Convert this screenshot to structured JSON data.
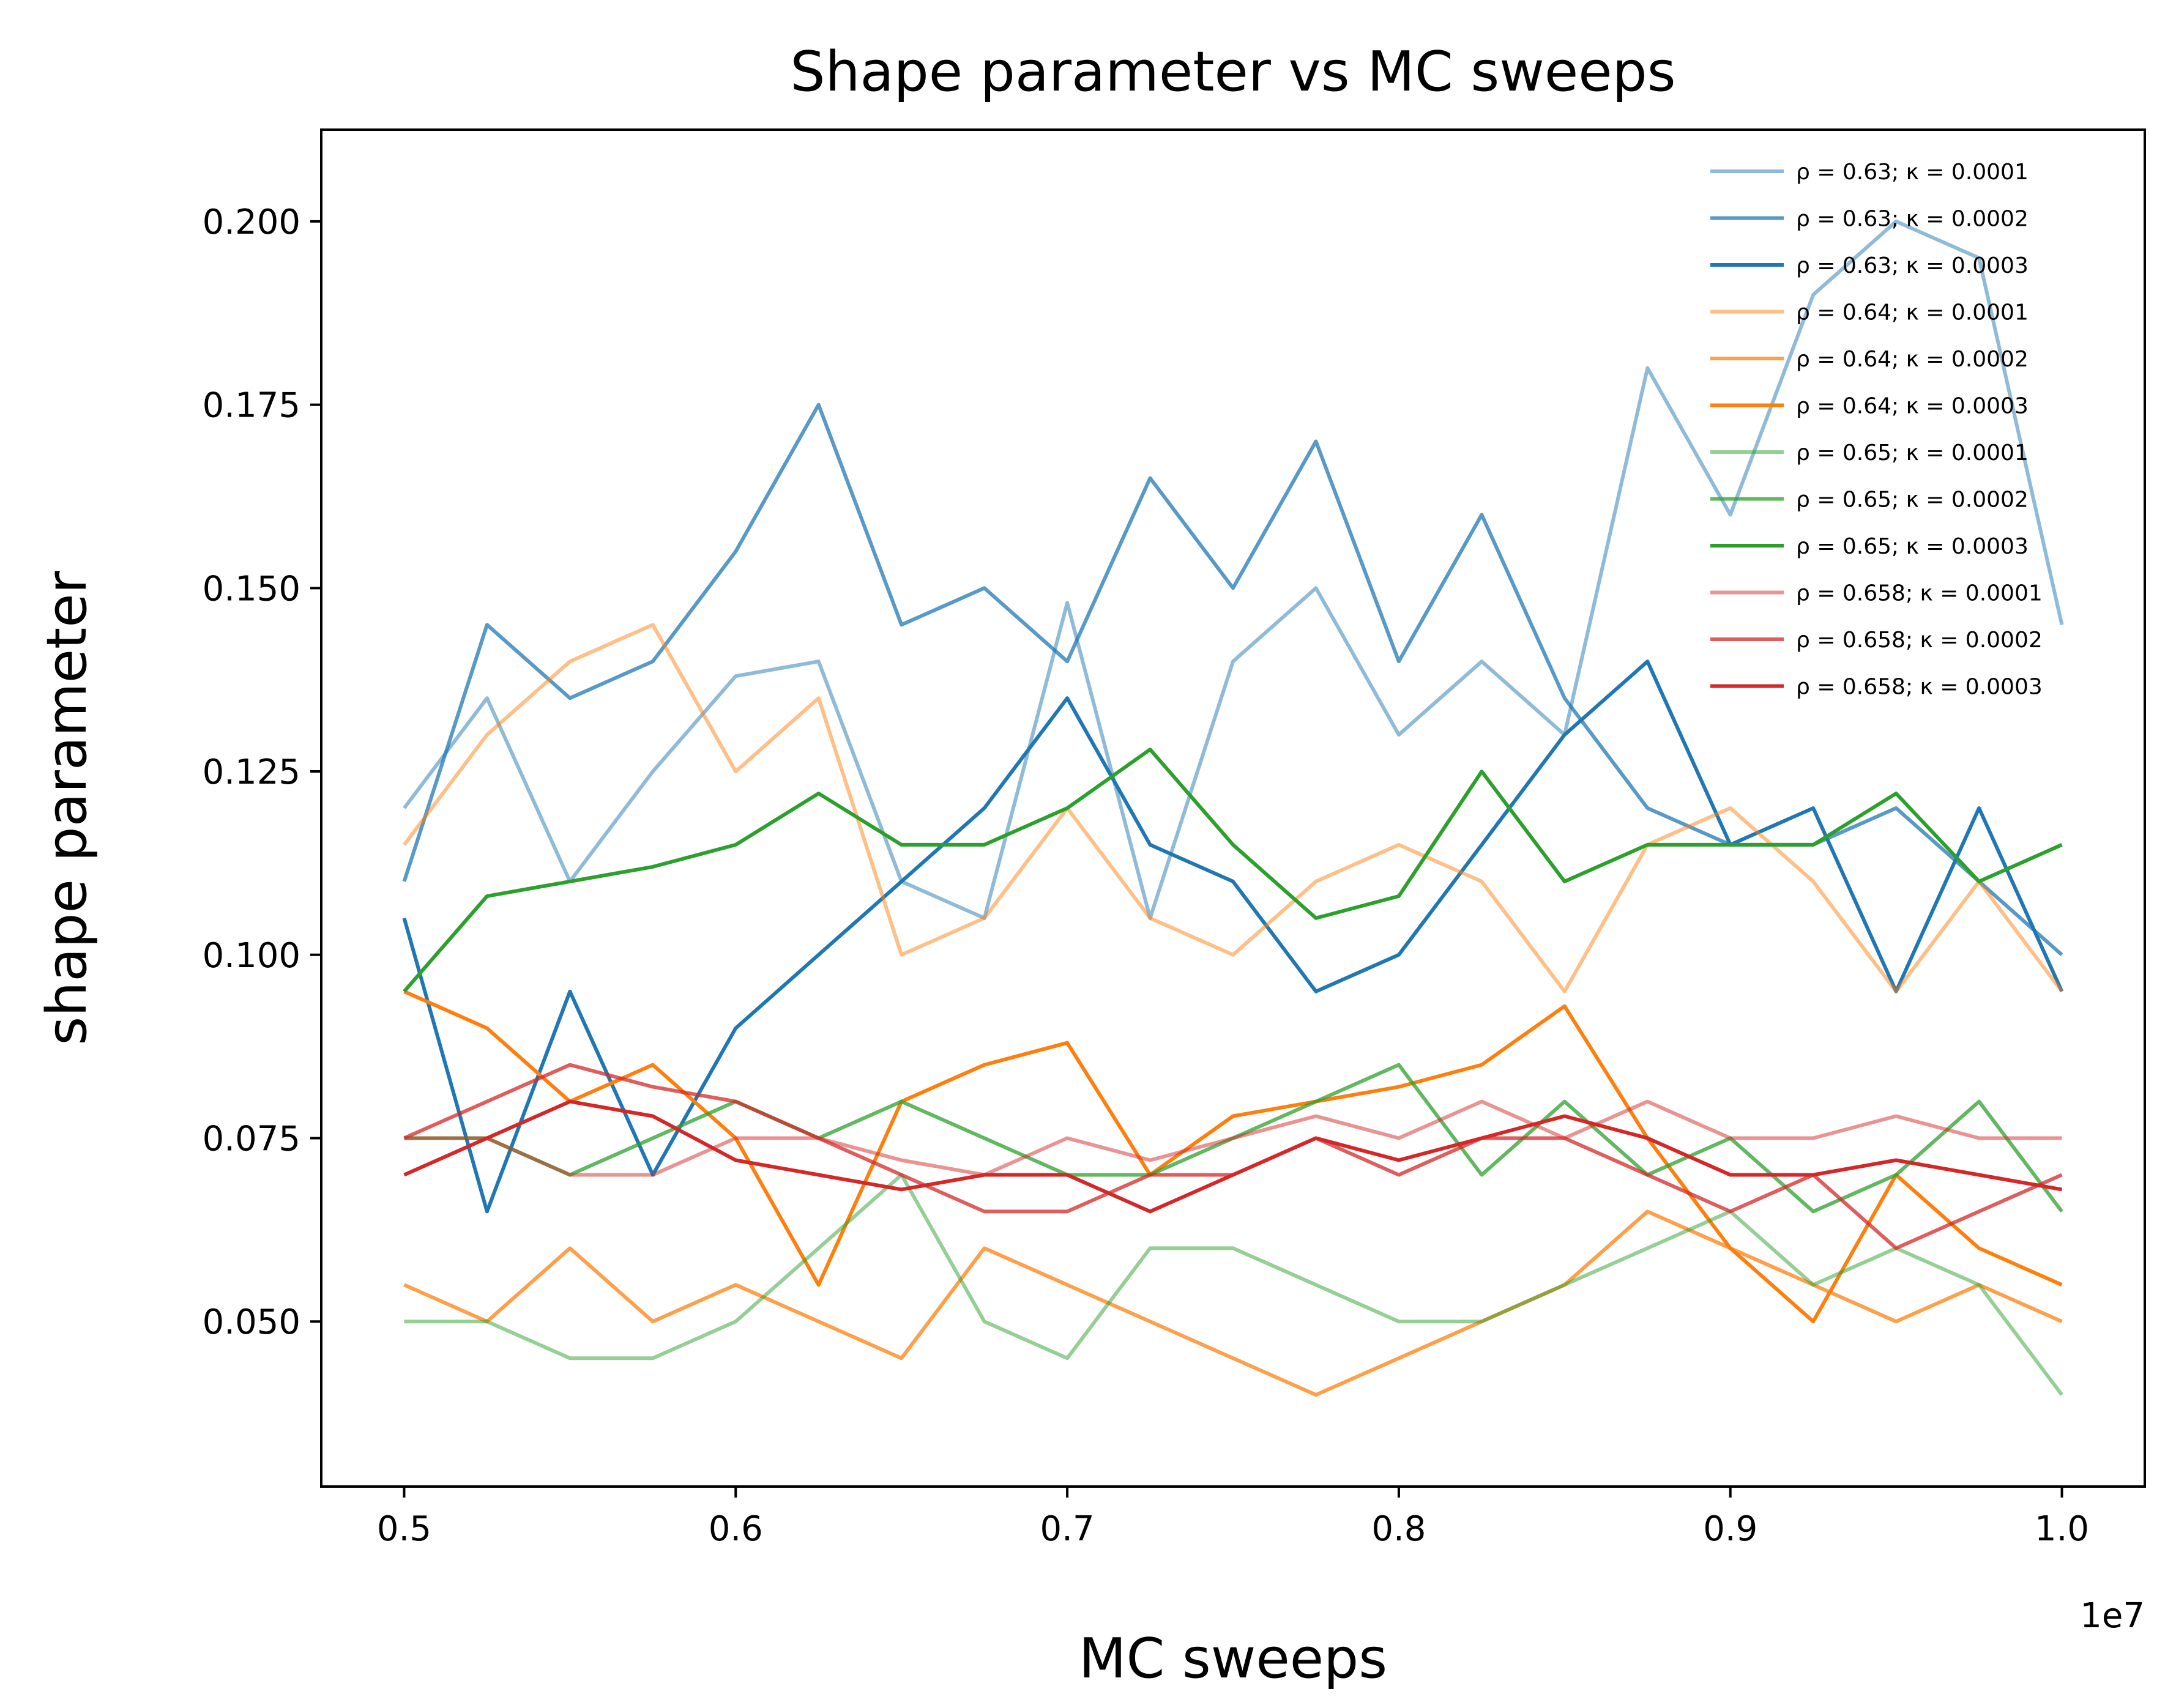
{
  "chart_data": {
    "type": "line",
    "title": "Shape parameter vs MC sweeps",
    "xlabel": "MC sweeps",
    "ylabel": "shape parameter",
    "x_offset_label": "1e7",
    "xlim": [
      0.475,
      1.025
    ],
    "ylim": [
      0.0275,
      0.2125
    ],
    "x_ticks": [
      0.5,
      0.6,
      0.7,
      0.8,
      0.9,
      1.0
    ],
    "x_tick_labels": [
      "0.5",
      "0.6",
      "0.7",
      "0.8",
      "0.9",
      "1.0"
    ],
    "y_ticks": [
      0.05,
      0.075,
      0.1,
      0.125,
      0.15,
      0.175,
      0.2
    ],
    "y_tick_labels": [
      "0.050",
      "0.075",
      "0.100",
      "0.125",
      "0.150",
      "0.175",
      "0.200"
    ],
    "grid": false,
    "legend_position": "top-right",
    "x": [
      0.5,
      0.525,
      0.55,
      0.575,
      0.6,
      0.625,
      0.65,
      0.675,
      0.7,
      0.725,
      0.75,
      0.775,
      0.8,
      0.825,
      0.85,
      0.875,
      0.9,
      0.925,
      0.95,
      0.975,
      1.0
    ],
    "series": [
      {
        "name": "ρ = 0.63; κ = 0.0001",
        "color": "#1f77b4",
        "opacity": 0.5,
        "values": [
          0.12,
          0.135,
          0.11,
          0.125,
          0.138,
          0.14,
          0.11,
          0.105,
          0.148,
          0.105,
          0.14,
          0.15,
          0.13,
          0.14,
          0.13,
          0.18,
          0.16,
          0.19,
          0.2,
          0.195,
          0.145
        ]
      },
      {
        "name": "ρ = 0.63; κ = 0.0002",
        "color": "#1f77b4",
        "opacity": 0.75,
        "values": [
          0.11,
          0.145,
          0.135,
          0.14,
          0.155,
          0.175,
          0.145,
          0.15,
          0.14,
          0.165,
          0.15,
          0.17,
          0.14,
          0.16,
          0.135,
          0.12,
          0.115,
          0.115,
          0.12,
          0.11,
          0.1
        ]
      },
      {
        "name": "ρ = 0.63; κ = 0.0003",
        "color": "#1f77b4",
        "opacity": 1.0,
        "values": [
          0.105,
          0.065,
          0.095,
          0.07,
          0.09,
          0.1,
          0.11,
          0.12,
          0.135,
          0.115,
          0.11,
          0.095,
          0.1,
          0.115,
          0.13,
          0.14,
          0.115,
          0.12,
          0.095,
          0.12,
          0.095
        ]
      },
      {
        "name": "ρ = 0.64; κ = 0.0001",
        "color": "#ff7f0e",
        "opacity": 0.5,
        "values": [
          0.115,
          0.13,
          0.14,
          0.145,
          0.125,
          0.135,
          0.1,
          0.105,
          0.12,
          0.105,
          0.1,
          0.11,
          0.115,
          0.11,
          0.095,
          0.115,
          0.12,
          0.11,
          0.095,
          0.11,
          0.095
        ]
      },
      {
        "name": "ρ = 0.64; κ = 0.0002",
        "color": "#ff7f0e",
        "opacity": 0.75,
        "values": [
          0.055,
          0.05,
          0.06,
          0.05,
          0.055,
          0.05,
          0.045,
          0.06,
          0.055,
          0.05,
          0.045,
          0.04,
          0.045,
          0.05,
          0.055,
          0.065,
          0.06,
          0.055,
          0.05,
          0.055,
          0.05
        ]
      },
      {
        "name": "ρ = 0.64; κ = 0.0003",
        "color": "#ff7f0e",
        "opacity": 1.0,
        "values": [
          0.095,
          0.09,
          0.08,
          0.085,
          0.075,
          0.055,
          0.08,
          0.085,
          0.088,
          0.07,
          0.078,
          0.08,
          0.082,
          0.085,
          0.093,
          0.075,
          0.06,
          0.05,
          0.07,
          0.06,
          0.055
        ]
      },
      {
        "name": "ρ = 0.65; κ = 0.0001",
        "color": "#2ca02c",
        "opacity": 0.5,
        "values": [
          0.05,
          0.05,
          0.045,
          0.045,
          0.05,
          0.06,
          0.07,
          0.05,
          0.045,
          0.06,
          0.06,
          0.055,
          0.05,
          0.05,
          0.055,
          0.06,
          0.065,
          0.055,
          0.06,
          0.055,
          0.04
        ]
      },
      {
        "name": "ρ = 0.65; κ = 0.0002",
        "color": "#2ca02c",
        "opacity": 0.75,
        "values": [
          0.075,
          0.075,
          0.07,
          0.075,
          0.08,
          0.075,
          0.08,
          0.075,
          0.07,
          0.07,
          0.075,
          0.08,
          0.085,
          0.07,
          0.08,
          0.07,
          0.075,
          0.065,
          0.07,
          0.08,
          0.065
        ]
      },
      {
        "name": "ρ = 0.65; κ = 0.0003",
        "color": "#2ca02c",
        "opacity": 1.0,
        "values": [
          0.095,
          0.108,
          0.11,
          0.112,
          0.115,
          0.122,
          0.115,
          0.115,
          0.12,
          0.128,
          0.115,
          0.105,
          0.108,
          0.125,
          0.11,
          0.115,
          0.115,
          0.115,
          0.122,
          0.11,
          0.115
        ]
      },
      {
        "name": "ρ = 0.658; κ = 0.0001",
        "color": "#d62728",
        "opacity": 0.5,
        "values": [
          0.075,
          0.075,
          0.07,
          0.07,
          0.075,
          0.075,
          0.072,
          0.07,
          0.075,
          0.072,
          0.075,
          0.078,
          0.075,
          0.08,
          0.075,
          0.08,
          0.075,
          0.075,
          0.078,
          0.075,
          0.075
        ]
      },
      {
        "name": "ρ = 0.658; κ = 0.0002",
        "color": "#d62728",
        "opacity": 0.75,
        "values": [
          0.075,
          0.08,
          0.085,
          0.082,
          0.08,
          0.075,
          0.07,
          0.065,
          0.065,
          0.07,
          0.07,
          0.075,
          0.07,
          0.075,
          0.075,
          0.07,
          0.065,
          0.07,
          0.06,
          0.065,
          0.07
        ]
      },
      {
        "name": "ρ = 0.658; κ = 0.0003",
        "color": "#d62728",
        "opacity": 1.0,
        "values": [
          0.07,
          0.075,
          0.08,
          0.078,
          0.072,
          0.07,
          0.068,
          0.07,
          0.07,
          0.065,
          0.07,
          0.075,
          0.072,
          0.075,
          0.078,
          0.075,
          0.07,
          0.07,
          0.072,
          0.07,
          0.068
        ]
      }
    ]
  }
}
